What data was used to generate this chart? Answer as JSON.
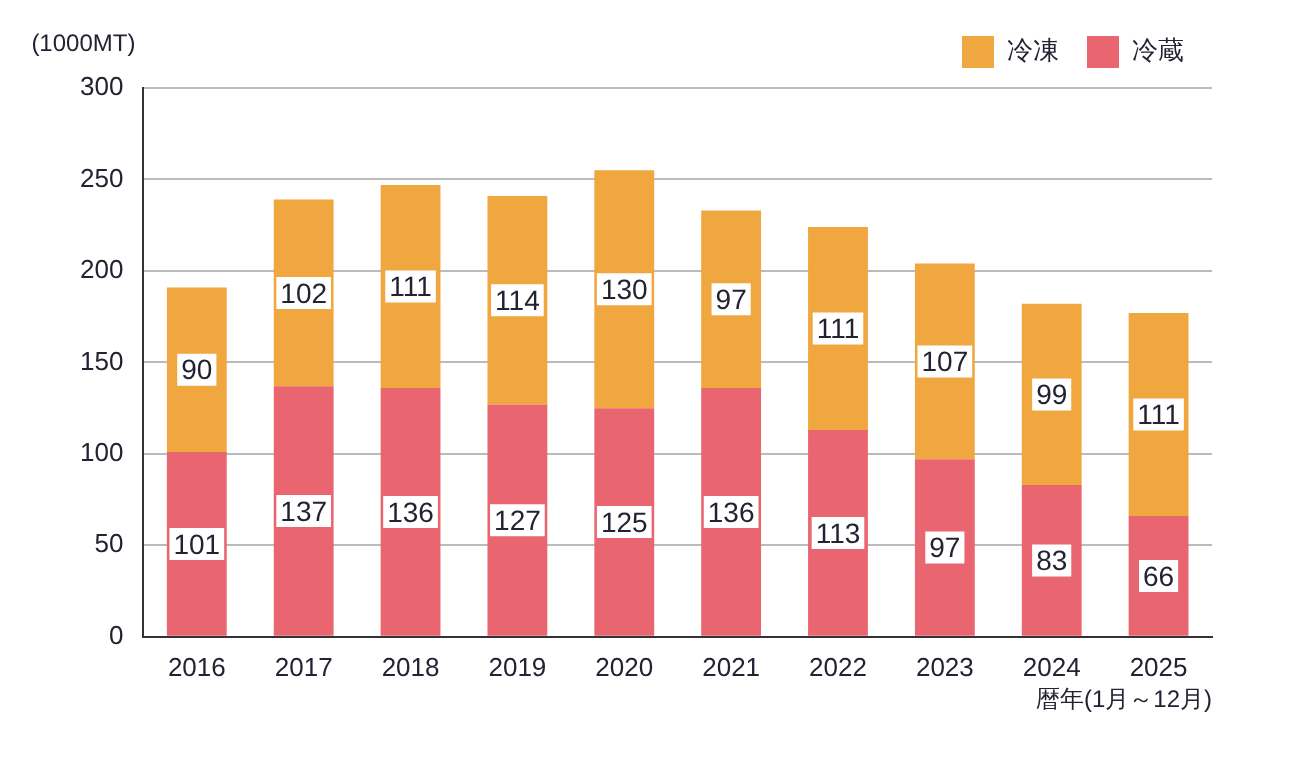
{
  "chart_data": {
    "type": "bar",
    "stacked": true,
    "ylabel": "(1000MT)",
    "xlabel": "暦年(1月～12月)",
    "categories": [
      "2016",
      "2017",
      "2018",
      "2019",
      "2020",
      "2021",
      "2022",
      "2023",
      "2024",
      "2025"
    ],
    "series": [
      {
        "name": "冷蔵",
        "color": "#e9656f",
        "values": [
          101,
          137,
          136,
          127,
          125,
          136,
          113,
          97,
          83,
          66
        ]
      },
      {
        "name": "冷凍",
        "color": "#f0a73f",
        "values": [
          90,
          102,
          111,
          114,
          130,
          97,
          111,
          107,
          99,
          111
        ]
      }
    ],
    "ylim": [
      0,
      300
    ],
    "yticks": [
      0,
      50,
      100,
      150,
      200,
      250,
      300
    ],
    "grid": "y",
    "legend": "top right",
    "data_labels": true
  }
}
